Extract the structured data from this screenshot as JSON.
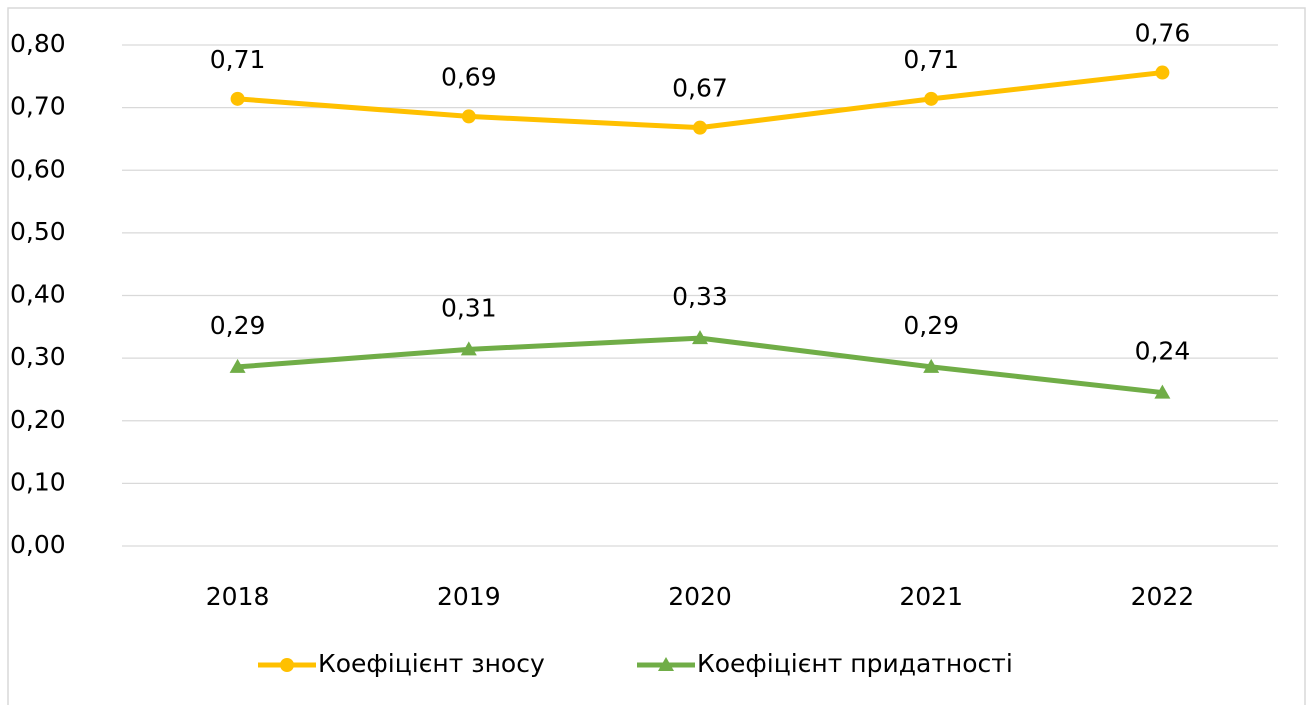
{
  "chart_data": {
    "type": "line",
    "categories": [
      "2018",
      "2019",
      "2020",
      "2021",
      "2022"
    ],
    "series": [
      {
        "name": "Коефіцієнт зносу",
        "color": "#ffc000",
        "marker": "circle",
        "values": [
          0.714,
          0.686,
          0.668,
          0.714,
          0.756
        ],
        "value_labels": [
          "0,71",
          "0,69",
          "0,67",
          "0,71",
          "0,76"
        ]
      },
      {
        "name": "Коефіцієнт придатності",
        "color": "#70ad47",
        "marker": "triangle",
        "values": [
          0.286,
          0.314,
          0.332,
          0.286,
          0.245
        ],
        "value_labels": [
          "0,29",
          "0,31",
          "0,33",
          "0,29",
          "0,24"
        ]
      }
    ],
    "ylim": [
      0,
      0.8
    ],
    "yticks": [
      {
        "value": 0,
        "label": "0,00"
      },
      {
        "value": 0.1,
        "label": "0,10"
      },
      {
        "value": 0.2,
        "label": "0,20"
      },
      {
        "value": 0.3,
        "label": "0,30"
      },
      {
        "value": 0.4,
        "label": "0,40"
      },
      {
        "value": 0.5,
        "label": "0,50"
      },
      {
        "value": 0.6,
        "label": "0,60"
      },
      {
        "value": 0.7,
        "label": "0,70"
      },
      {
        "value": 0.8,
        "label": "0,80"
      }
    ],
    "grid": true,
    "legend": "bottom"
  }
}
